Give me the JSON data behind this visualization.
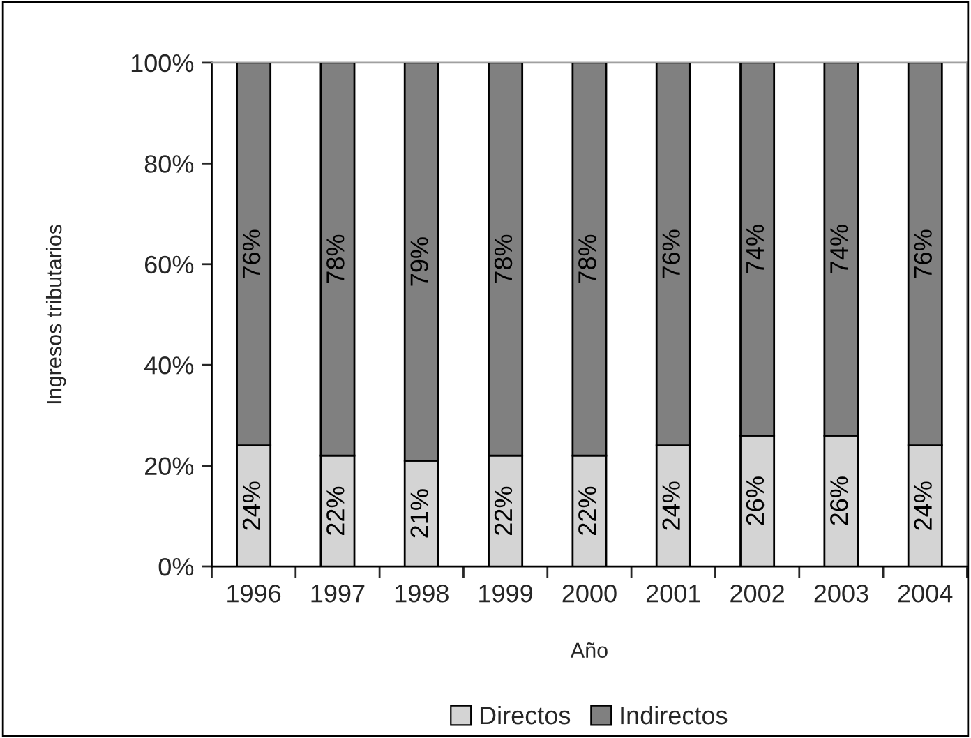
{
  "chart_data": {
    "type": "bar",
    "stacked": true,
    "categories": [
      "1996",
      "1997",
      "1998",
      "1999",
      "2000",
      "2001",
      "2002",
      "2003",
      "2004"
    ],
    "series": [
      {
        "name": "Directos",
        "color": "#d4d4d4",
        "values": [
          24,
          22,
          21,
          22,
          22,
          24,
          26,
          26,
          24
        ],
        "value_labels": [
          "24%",
          "22%",
          "21%",
          "22%",
          "22%",
          "24%",
          "26%",
          "26%",
          "24%"
        ]
      },
      {
        "name": "Indirectos",
        "color": "#808080",
        "values": [
          76,
          78,
          79,
          78,
          78,
          76,
          74,
          74,
          76
        ],
        "value_labels": [
          "76%",
          "78%",
          "79%",
          "78%",
          "78%",
          "76%",
          "74%",
          "74%",
          "76%"
        ]
      }
    ],
    "xlabel": "Año",
    "ylabel": "Ingresos tributarios",
    "ylim": [
      0,
      100
    ],
    "yticks": [
      {
        "value": 0,
        "label": "0%"
      },
      {
        "value": 20,
        "label": "20%"
      },
      {
        "value": 40,
        "label": "40%"
      },
      {
        "value": 60,
        "label": "60%"
      },
      {
        "value": 80,
        "label": "80%"
      },
      {
        "value": 100,
        "label": "100%"
      }
    ],
    "legend": "bottom",
    "grid": false
  }
}
